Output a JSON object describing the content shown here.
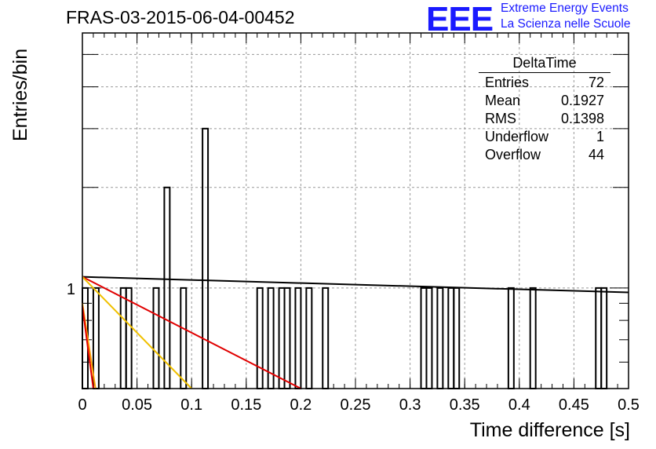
{
  "header": {
    "title": "FRAS-03-2015-06-04-00452",
    "logo_text": "EEE",
    "logo_line1": "Extreme Energy Events",
    "logo_line2": "La Scienza nelle Scuole"
  },
  "stats": {
    "name": "DeltaTime",
    "rows": [
      {
        "label": "Entries",
        "value": "72"
      },
      {
        "label": "Mean",
        "value": "0.1927"
      },
      {
        "label": "RMS",
        "value": "0.1398"
      },
      {
        "label": "Underflow",
        "value": "1"
      },
      {
        "label": "Overflow",
        "value": "44"
      }
    ]
  },
  "chart_data": {
    "type": "bar",
    "title": "FRAS-03-2015-06-04-00452",
    "xlabel": "Time difference [s]",
    "ylabel": "Entries/bin",
    "xlim": [
      0,
      0.5
    ],
    "log_y": true,
    "ylim": [
      0.5,
      5.8
    ],
    "grid": true,
    "x_ticks": [
      "0",
      "0.05",
      "0.1",
      "0.15",
      "0.2",
      "0.25",
      "0.3",
      "0.35",
      "0.4",
      "0.45",
      "0.5"
    ],
    "y_ticks": [
      "1"
    ],
    "bin_width": 0.005,
    "bins": [
      {
        "x": 0.0,
        "count": 1
      },
      {
        "x": 0.01,
        "count": 1
      },
      {
        "x": 0.035,
        "count": 1
      },
      {
        "x": 0.04,
        "count": 1
      },
      {
        "x": 0.065,
        "count": 1
      },
      {
        "x": 0.075,
        "count": 2
      },
      {
        "x": 0.09,
        "count": 1
      },
      {
        "x": 0.11,
        "count": 3
      },
      {
        "x": 0.16,
        "count": 1
      },
      {
        "x": 0.17,
        "count": 1
      },
      {
        "x": 0.18,
        "count": 1
      },
      {
        "x": 0.185,
        "count": 1
      },
      {
        "x": 0.195,
        "count": 1
      },
      {
        "x": 0.205,
        "count": 1
      },
      {
        "x": 0.22,
        "count": 1
      },
      {
        "x": 0.31,
        "count": 1
      },
      {
        "x": 0.315,
        "count": 1
      },
      {
        "x": 0.325,
        "count": 1
      },
      {
        "x": 0.335,
        "count": 1
      },
      {
        "x": 0.34,
        "count": 1
      },
      {
        "x": 0.39,
        "count": 1
      },
      {
        "x": 0.41,
        "count": 1
      },
      {
        "x": 0.47,
        "count": 1
      },
      {
        "x": 0.475,
        "count": 1
      }
    ],
    "fit_lines": [
      {
        "color": "#000000",
        "points": [
          [
            0.0,
            1.08
          ],
          [
            0.5,
            0.97
          ]
        ]
      },
      {
        "color": "#e00000",
        "points": [
          [
            0.0,
            1.08
          ],
          [
            0.2,
            0.5
          ]
        ]
      },
      {
        "color": "#f0c000",
        "points": [
          [
            0.0,
            1.08
          ],
          [
            0.1,
            0.5
          ]
        ]
      },
      {
        "color": "#ffa000",
        "points": [
          [
            0.0,
            0.9
          ],
          [
            0.012,
            0.5
          ]
        ]
      },
      {
        "color": "#e00000",
        "points": [
          [
            0.0,
            0.88
          ],
          [
            0.01,
            0.5
          ]
        ]
      }
    ]
  }
}
